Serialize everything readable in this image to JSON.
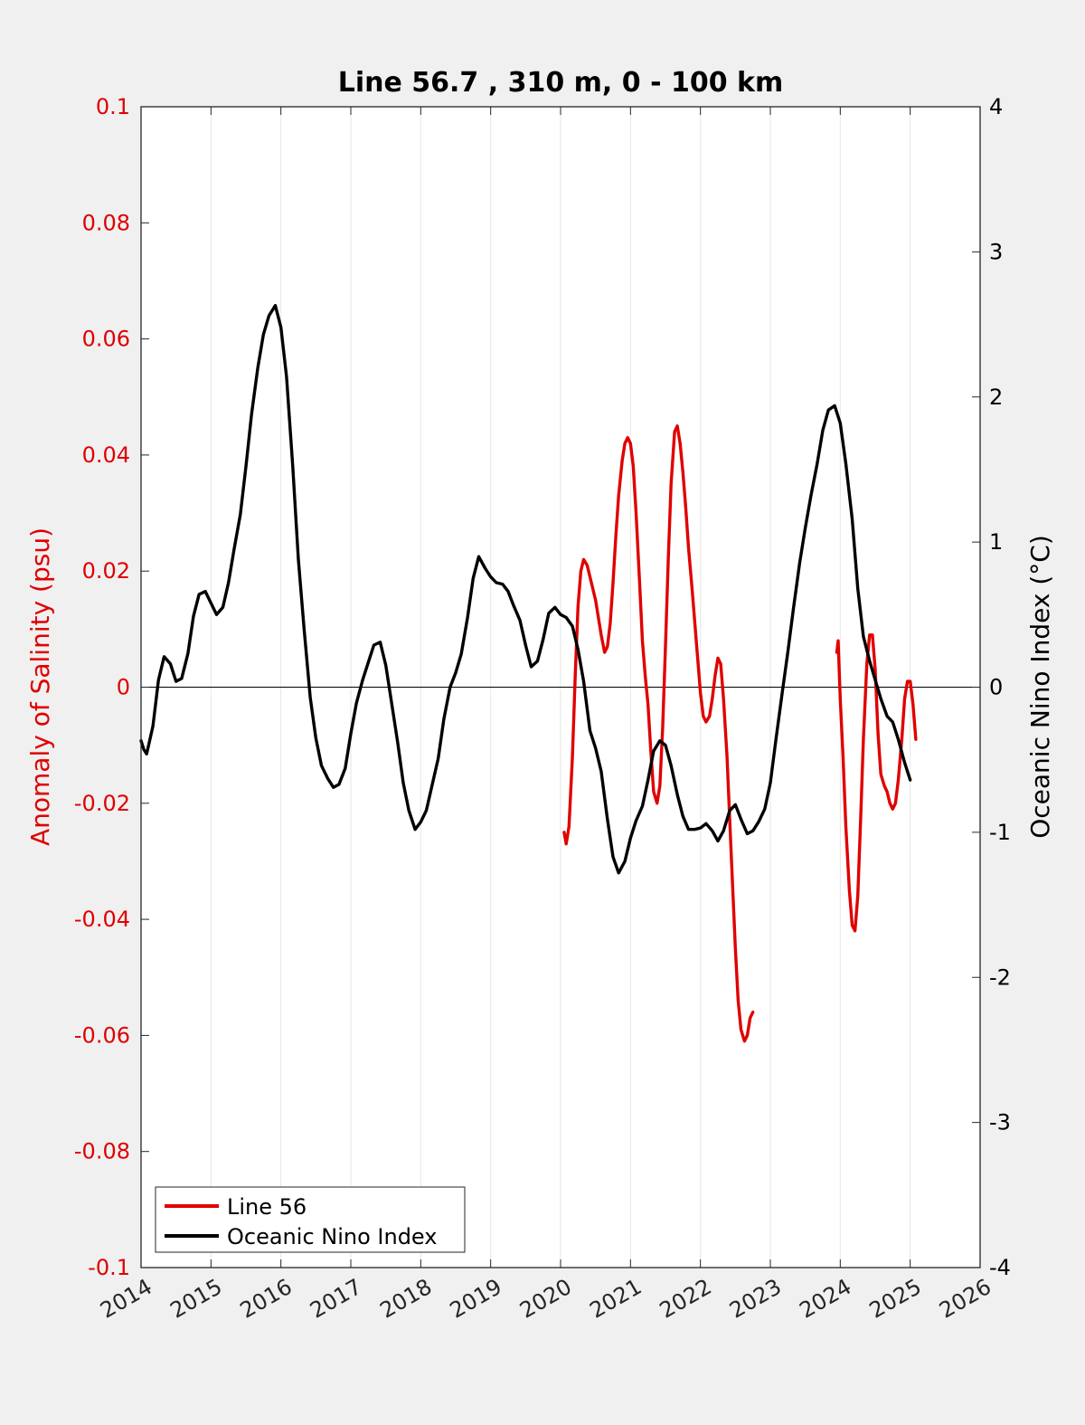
{
  "chart_data": {
    "type": "line",
    "title": "Line 56.7 , 310 m, 0 - 100 km",
    "ylabel_left": "Anomaly of Salinity (psu)",
    "ylabel_right": "Oceanic Nino Index (°C)",
    "xlim": [
      2014,
      2026
    ],
    "ylim_left": [
      -0.1,
      0.1
    ],
    "ylim_right": [
      -4,
      4
    ],
    "x_ticks": [
      "2014",
      "2015",
      "2016",
      "2017",
      "2018",
      "2019",
      "2020",
      "2021",
      "2022",
      "2023",
      "2024",
      "2025",
      "2026"
    ],
    "y_ticks_left": [
      "0.1",
      "0.08",
      "0.06",
      "0.04",
      "0.02",
      "0",
      "-0.02",
      "-0.04",
      "-0.06",
      "-0.08",
      "-0.1"
    ],
    "y_ticks_right": [
      "4",
      "3",
      "2",
      "1",
      "0",
      "-1",
      "-2",
      "-3",
      "-4"
    ],
    "grid": "vertical",
    "zero_line": true,
    "legend": {
      "position": "bottom-left",
      "entries": [
        "Line 56",
        "Oceanic Nino Index"
      ]
    },
    "colors": {
      "line56": "#e00000",
      "oni": "#000000",
      "left_axis": "#e00000",
      "right_axis": "#000000"
    },
    "series": [
      {
        "name": "Line 56",
        "axis": "left",
        "segments": [
          [
            [
              2020.05,
              -0.025
            ],
            [
              2020.08,
              -0.027
            ],
            [
              2020.12,
              -0.024
            ],
            [
              2020.17,
              -0.012
            ],
            [
              2020.21,
              0.002
            ],
            [
              2020.25,
              0.014
            ],
            [
              2020.29,
              0.02
            ],
            [
              2020.33,
              0.022
            ],
            [
              2020.38,
              0.021
            ],
            [
              2020.42,
              0.019
            ],
            [
              2020.46,
              0.017
            ],
            [
              2020.5,
              0.015
            ],
            [
              2020.54,
              0.012
            ],
            [
              2020.58,
              0.009
            ],
            [
              2020.63,
              0.006
            ],
            [
              2020.67,
              0.007
            ],
            [
              2020.71,
              0.011
            ],
            [
              2020.75,
              0.018
            ],
            [
              2020.79,
              0.026
            ],
            [
              2020.83,
              0.033
            ],
            [
              2020.88,
              0.039
            ],
            [
              2020.92,
              0.042
            ],
            [
              2020.96,
              0.043
            ],
            [
              2021.0,
              0.042
            ],
            [
              2021.04,
              0.038
            ],
            [
              2021.08,
              0.03
            ],
            [
              2021.13,
              0.018
            ],
            [
              2021.17,
              0.008
            ],
            [
              2021.21,
              0.002
            ],
            [
              2021.25,
              -0.003
            ],
            [
              2021.29,
              -0.011
            ],
            [
              2021.33,
              -0.018
            ],
            [
              2021.38,
              -0.02
            ],
            [
              2021.42,
              -0.017
            ],
            [
              2021.46,
              -0.007
            ],
            [
              2021.5,
              0.007
            ],
            [
              2021.54,
              0.022
            ],
            [
              2021.58,
              0.035
            ],
            [
              2021.63,
              0.044
            ],
            [
              2021.67,
              0.045
            ],
            [
              2021.71,
              0.042
            ],
            [
              2021.75,
              0.037
            ],
            [
              2021.79,
              0.031
            ],
            [
              2021.83,
              0.024
            ],
            [
              2021.88,
              0.017
            ],
            [
              2021.92,
              0.011
            ],
            [
              2021.96,
              0.005
            ],
            [
              2022.0,
              -0.001
            ],
            [
              2022.04,
              -0.005
            ],
            [
              2022.08,
              -0.006
            ],
            [
              2022.13,
              -0.005
            ],
            [
              2022.17,
              -0.002
            ],
            [
              2022.21,
              0.002
            ],
            [
              2022.25,
              0.005
            ],
            [
              2022.29,
              0.004
            ],
            [
              2022.33,
              -0.002
            ],
            [
              2022.38,
              -0.012
            ],
            [
              2022.42,
              -0.023
            ],
            [
              2022.46,
              -0.034
            ],
            [
              2022.5,
              -0.045
            ],
            [
              2022.54,
              -0.054
            ],
            [
              2022.58,
              -0.059
            ],
            [
              2022.63,
              -0.061
            ],
            [
              2022.67,
              -0.06
            ],
            [
              2022.71,
              -0.057
            ],
            [
              2022.75,
              -0.056
            ]
          ],
          [
            [
              2023.95,
              0.006
            ],
            [
              2023.97,
              0.008
            ],
            [
              2024.0,
              -0.002
            ],
            [
              2024.04,
              -0.012
            ],
            [
              2024.08,
              -0.024
            ],
            [
              2024.13,
              -0.035
            ],
            [
              2024.17,
              -0.041
            ],
            [
              2024.21,
              -0.042
            ],
            [
              2024.25,
              -0.036
            ],
            [
              2024.29,
              -0.023
            ],
            [
              2024.33,
              -0.009
            ],
            [
              2024.38,
              0.004
            ],
            [
              2024.42,
              0.009
            ],
            [
              2024.46,
              0.009
            ],
            [
              2024.5,
              0.003
            ],
            [
              2024.54,
              -0.008
            ],
            [
              2024.58,
              -0.015
            ],
            [
              2024.63,
              -0.017
            ],
            [
              2024.67,
              -0.018
            ],
            [
              2024.71,
              -0.02
            ],
            [
              2024.75,
              -0.021
            ],
            [
              2024.79,
              -0.02
            ],
            [
              2024.83,
              -0.016
            ],
            [
              2024.88,
              -0.009
            ],
            [
              2024.92,
              -0.002
            ],
            [
              2024.96,
              0.001
            ],
            [
              2025.0,
              0.001
            ],
            [
              2025.04,
              -0.003
            ],
            [
              2025.08,
              -0.009
            ]
          ]
        ]
      },
      {
        "name": "Oceanic Nino Index",
        "axis": "right",
        "segments": [
          [
            [
              2014.0,
              -0.37
            ],
            [
              2014.04,
              -0.43
            ],
            [
              2014.08,
              -0.46
            ],
            [
              2014.17,
              -0.27
            ],
            [
              2014.25,
              0.05
            ],
            [
              2014.33,
              0.21
            ],
            [
              2014.42,
              0.16
            ],
            [
              2014.5,
              0.04
            ],
            [
              2014.58,
              0.06
            ],
            [
              2014.67,
              0.23
            ],
            [
              2014.75,
              0.49
            ],
            [
              2014.83,
              0.64
            ],
            [
              2014.92,
              0.66
            ],
            [
              2015.0,
              0.58
            ],
            [
              2015.08,
              0.5
            ],
            [
              2015.17,
              0.55
            ],
            [
              2015.25,
              0.72
            ],
            [
              2015.33,
              0.95
            ],
            [
              2015.42,
              1.19
            ],
            [
              2015.5,
              1.52
            ],
            [
              2015.58,
              1.88
            ],
            [
              2015.67,
              2.2
            ],
            [
              2015.75,
              2.43
            ],
            [
              2015.83,
              2.56
            ],
            [
              2015.92,
              2.63
            ],
            [
              2016.0,
              2.48
            ],
            [
              2016.08,
              2.14
            ],
            [
              2016.17,
              1.52
            ],
            [
              2016.25,
              0.88
            ],
            [
              2016.33,
              0.41
            ],
            [
              2016.42,
              -0.07
            ],
            [
              2016.5,
              -0.35
            ],
            [
              2016.58,
              -0.54
            ],
            [
              2016.67,
              -0.63
            ],
            [
              2016.75,
              -0.69
            ],
            [
              2016.83,
              -0.67
            ],
            [
              2016.92,
              -0.56
            ],
            [
              2017.0,
              -0.32
            ],
            [
              2017.08,
              -0.11
            ],
            [
              2017.17,
              0.05
            ],
            [
              2017.25,
              0.17
            ],
            [
              2017.33,
              0.29
            ],
            [
              2017.42,
              0.31
            ],
            [
              2017.5,
              0.15
            ],
            [
              2017.58,
              -0.1
            ],
            [
              2017.67,
              -0.38
            ],
            [
              2017.75,
              -0.66
            ],
            [
              2017.83,
              -0.85
            ],
            [
              2017.92,
              -0.98
            ],
            [
              2018.0,
              -0.93
            ],
            [
              2018.08,
              -0.85
            ],
            [
              2018.17,
              -0.66
            ],
            [
              2018.25,
              -0.49
            ],
            [
              2018.33,
              -0.22
            ],
            [
              2018.42,
              0.0
            ],
            [
              2018.5,
              0.1
            ],
            [
              2018.58,
              0.23
            ],
            [
              2018.67,
              0.48
            ],
            [
              2018.75,
              0.75
            ],
            [
              2018.83,
              0.9
            ],
            [
              2018.92,
              0.82
            ],
            [
              2019.0,
              0.76
            ],
            [
              2019.08,
              0.72
            ],
            [
              2019.17,
              0.71
            ],
            [
              2019.25,
              0.66
            ],
            [
              2019.33,
              0.56
            ],
            [
              2019.42,
              0.46
            ],
            [
              2019.5,
              0.29
            ],
            [
              2019.58,
              0.14
            ],
            [
              2019.67,
              0.18
            ],
            [
              2019.75,
              0.33
            ],
            [
              2019.83,
              0.51
            ],
            [
              2019.92,
              0.55
            ],
            [
              2020.0,
              0.5
            ],
            [
              2020.08,
              0.48
            ],
            [
              2020.17,
              0.42
            ],
            [
              2020.25,
              0.26
            ],
            [
              2020.33,
              0.04
            ],
            [
              2020.42,
              -0.3
            ],
            [
              2020.5,
              -0.42
            ],
            [
              2020.58,
              -0.58
            ],
            [
              2020.67,
              -0.91
            ],
            [
              2020.75,
              -1.17
            ],
            [
              2020.83,
              -1.28
            ],
            [
              2020.92,
              -1.2
            ],
            [
              2021.0,
              -1.04
            ],
            [
              2021.08,
              -0.92
            ],
            [
              2021.17,
              -0.82
            ],
            [
              2021.25,
              -0.64
            ],
            [
              2021.33,
              -0.44
            ],
            [
              2021.42,
              -0.37
            ],
            [
              2021.5,
              -0.4
            ],
            [
              2021.58,
              -0.54
            ],
            [
              2021.67,
              -0.74
            ],
            [
              2021.75,
              -0.89
            ],
            [
              2021.83,
              -0.98
            ],
            [
              2021.92,
              -0.98
            ],
            [
              2022.0,
              -0.97
            ],
            [
              2022.08,
              -0.94
            ],
            [
              2022.17,
              -0.99
            ],
            [
              2022.25,
              -1.06
            ],
            [
              2022.33,
              -0.99
            ],
            [
              2022.42,
              -0.85
            ],
            [
              2022.5,
              -0.81
            ],
            [
              2022.58,
              -0.91
            ],
            [
              2022.67,
              -1.01
            ],
            [
              2022.75,
              -0.99
            ],
            [
              2022.83,
              -0.93
            ],
            [
              2022.92,
              -0.84
            ],
            [
              2023.0,
              -0.66
            ],
            [
              2023.08,
              -0.36
            ],
            [
              2023.17,
              -0.04
            ],
            [
              2023.25,
              0.24
            ],
            [
              2023.33,
              0.54
            ],
            [
              2023.42,
              0.86
            ],
            [
              2023.5,
              1.1
            ],
            [
              2023.58,
              1.32
            ],
            [
              2023.67,
              1.54
            ],
            [
              2023.75,
              1.77
            ],
            [
              2023.83,
              1.91
            ],
            [
              2023.92,
              1.94
            ],
            [
              2024.0,
              1.82
            ],
            [
              2024.08,
              1.54
            ],
            [
              2024.17,
              1.16
            ],
            [
              2024.25,
              0.68
            ],
            [
              2024.33,
              0.35
            ],
            [
              2024.42,
              0.18
            ],
            [
              2024.5,
              0.05
            ],
            [
              2024.58,
              -0.08
            ],
            [
              2024.67,
              -0.2
            ],
            [
              2024.75,
              -0.24
            ],
            [
              2024.83,
              -0.36
            ],
            [
              2024.92,
              -0.52
            ],
            [
              2025.0,
              -0.64
            ]
          ]
        ]
      }
    ]
  }
}
